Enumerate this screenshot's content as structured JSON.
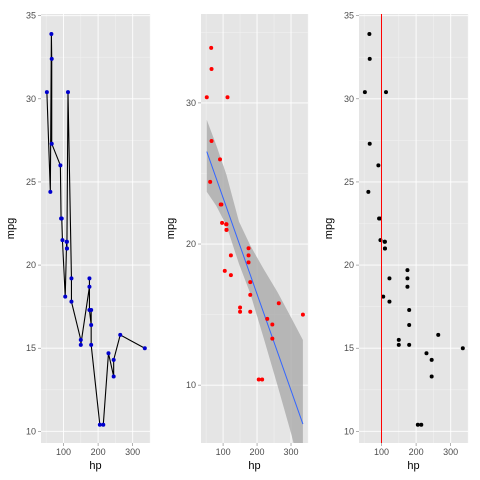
{
  "colors": {
    "panel_background": "#e5e5e5",
    "grid": "#ffffff",
    "line_points_color": "#0000cc",
    "line_color": "#000000",
    "regression_points_color": "#ff0000",
    "regression_line_color": "#3366ff",
    "confidence_band_color": "#a6a6a6",
    "vline_points_color": "#000000",
    "vline_color": "#ff0000"
  },
  "chart_data": [
    {
      "type": "line",
      "xlabel": "hp",
      "ylabel": "mpg",
      "xlim": [
        35,
        350
      ],
      "ylim": [
        9.3,
        35.1
      ],
      "xticks": [
        100,
        200,
        300
      ],
      "yticks": [
        10,
        15,
        20,
        25,
        30,
        35
      ],
      "grid": true,
      "points_marker": true,
      "series": [
        {
          "x": [
            52,
            62,
            65,
            66,
            66,
            91,
            93,
            95,
            97,
            105,
            109,
            110,
            110,
            110,
            113,
            123,
            123,
            150,
            150,
            175,
            175,
            175,
            180,
            180,
            180,
            205,
            215,
            230,
            245,
            245,
            264,
            335
          ],
          "y": [
            30.4,
            24.4,
            33.9,
            32.4,
            27.3,
            26.0,
            22.8,
            22.8,
            21.5,
            18.1,
            21.4,
            21.0,
            21.0,
            21.4,
            30.4,
            19.2,
            17.8,
            15.5,
            15.2,
            18.7,
            19.2,
            17.3,
            16.4,
            17.3,
            15.2,
            10.4,
            10.4,
            14.7,
            13.3,
            14.3,
            15.8,
            15.0
          ]
        }
      ]
    },
    {
      "type": "scatter",
      "xlabel": "hp",
      "ylabel": "mpg",
      "xlim": [
        35,
        350
      ],
      "ylim": [
        5.9,
        36.3
      ],
      "xticks": [
        100,
        200,
        300
      ],
      "yticks": [
        10,
        20,
        30
      ],
      "grid": true,
      "series": [
        {
          "x": [
            110,
            110,
            93,
            110,
            175,
            105,
            245,
            62,
            95,
            123,
            123,
            180,
            180,
            180,
            205,
            215,
            230,
            66,
            52,
            65,
            97,
            150,
            150,
            245,
            175,
            66,
            91,
            113,
            264,
            175,
            335,
            109
          ],
          "y": [
            21.0,
            21.0,
            22.8,
            21.4,
            18.7,
            18.1,
            14.3,
            24.4,
            22.8,
            19.2,
            17.8,
            16.4,
            17.3,
            15.2,
            10.4,
            10.4,
            14.7,
            32.4,
            30.4,
            33.9,
            21.5,
            15.5,
            15.2,
            13.3,
            19.2,
            27.3,
            26.0,
            30.4,
            15.8,
            19.7,
            15.0,
            21.4
          ]
        }
      ],
      "regression": {
        "method": "linear",
        "intercept": 30.0989,
        "slope": -0.06823,
        "confidence_band": {
          "x": [
            52,
            80,
            110,
            146.7,
            180,
            220,
            260,
            300,
            335
          ],
          "lower": [
            23.7,
            22.7,
            21.3,
            18.6,
            16.5,
            13.3,
            10.0,
            6.6,
            3.3
          ],
          "upper": [
            28.8,
            27.0,
            24.9,
            21.6,
            19.9,
            18.2,
            16.6,
            14.8,
            13.2
          ]
        }
      }
    },
    {
      "type": "scatter",
      "xlabel": "hp",
      "ylabel": "mpg",
      "xlim": [
        35,
        350
      ],
      "ylim": [
        9.3,
        35.1
      ],
      "xticks": [
        100,
        200,
        300
      ],
      "yticks": [
        10,
        15,
        20,
        25,
        30,
        35
      ],
      "grid": true,
      "vline": 100,
      "series": [
        {
          "x": [
            110,
            110,
            93,
            110,
            175,
            105,
            245,
            62,
            95,
            123,
            123,
            180,
            180,
            180,
            205,
            215,
            230,
            66,
            52,
            65,
            97,
            150,
            150,
            245,
            175,
            66,
            91,
            113,
            264,
            175,
            335,
            109
          ],
          "y": [
            21.0,
            21.0,
            22.8,
            21.4,
            18.7,
            18.1,
            14.3,
            24.4,
            22.8,
            19.2,
            17.8,
            16.4,
            17.3,
            15.2,
            10.4,
            10.4,
            14.7,
            32.4,
            30.4,
            33.9,
            21.5,
            15.5,
            15.2,
            13.3,
            19.2,
            27.3,
            26.0,
            30.4,
            15.8,
            19.7,
            15.0,
            21.4
          ]
        }
      ]
    }
  ]
}
